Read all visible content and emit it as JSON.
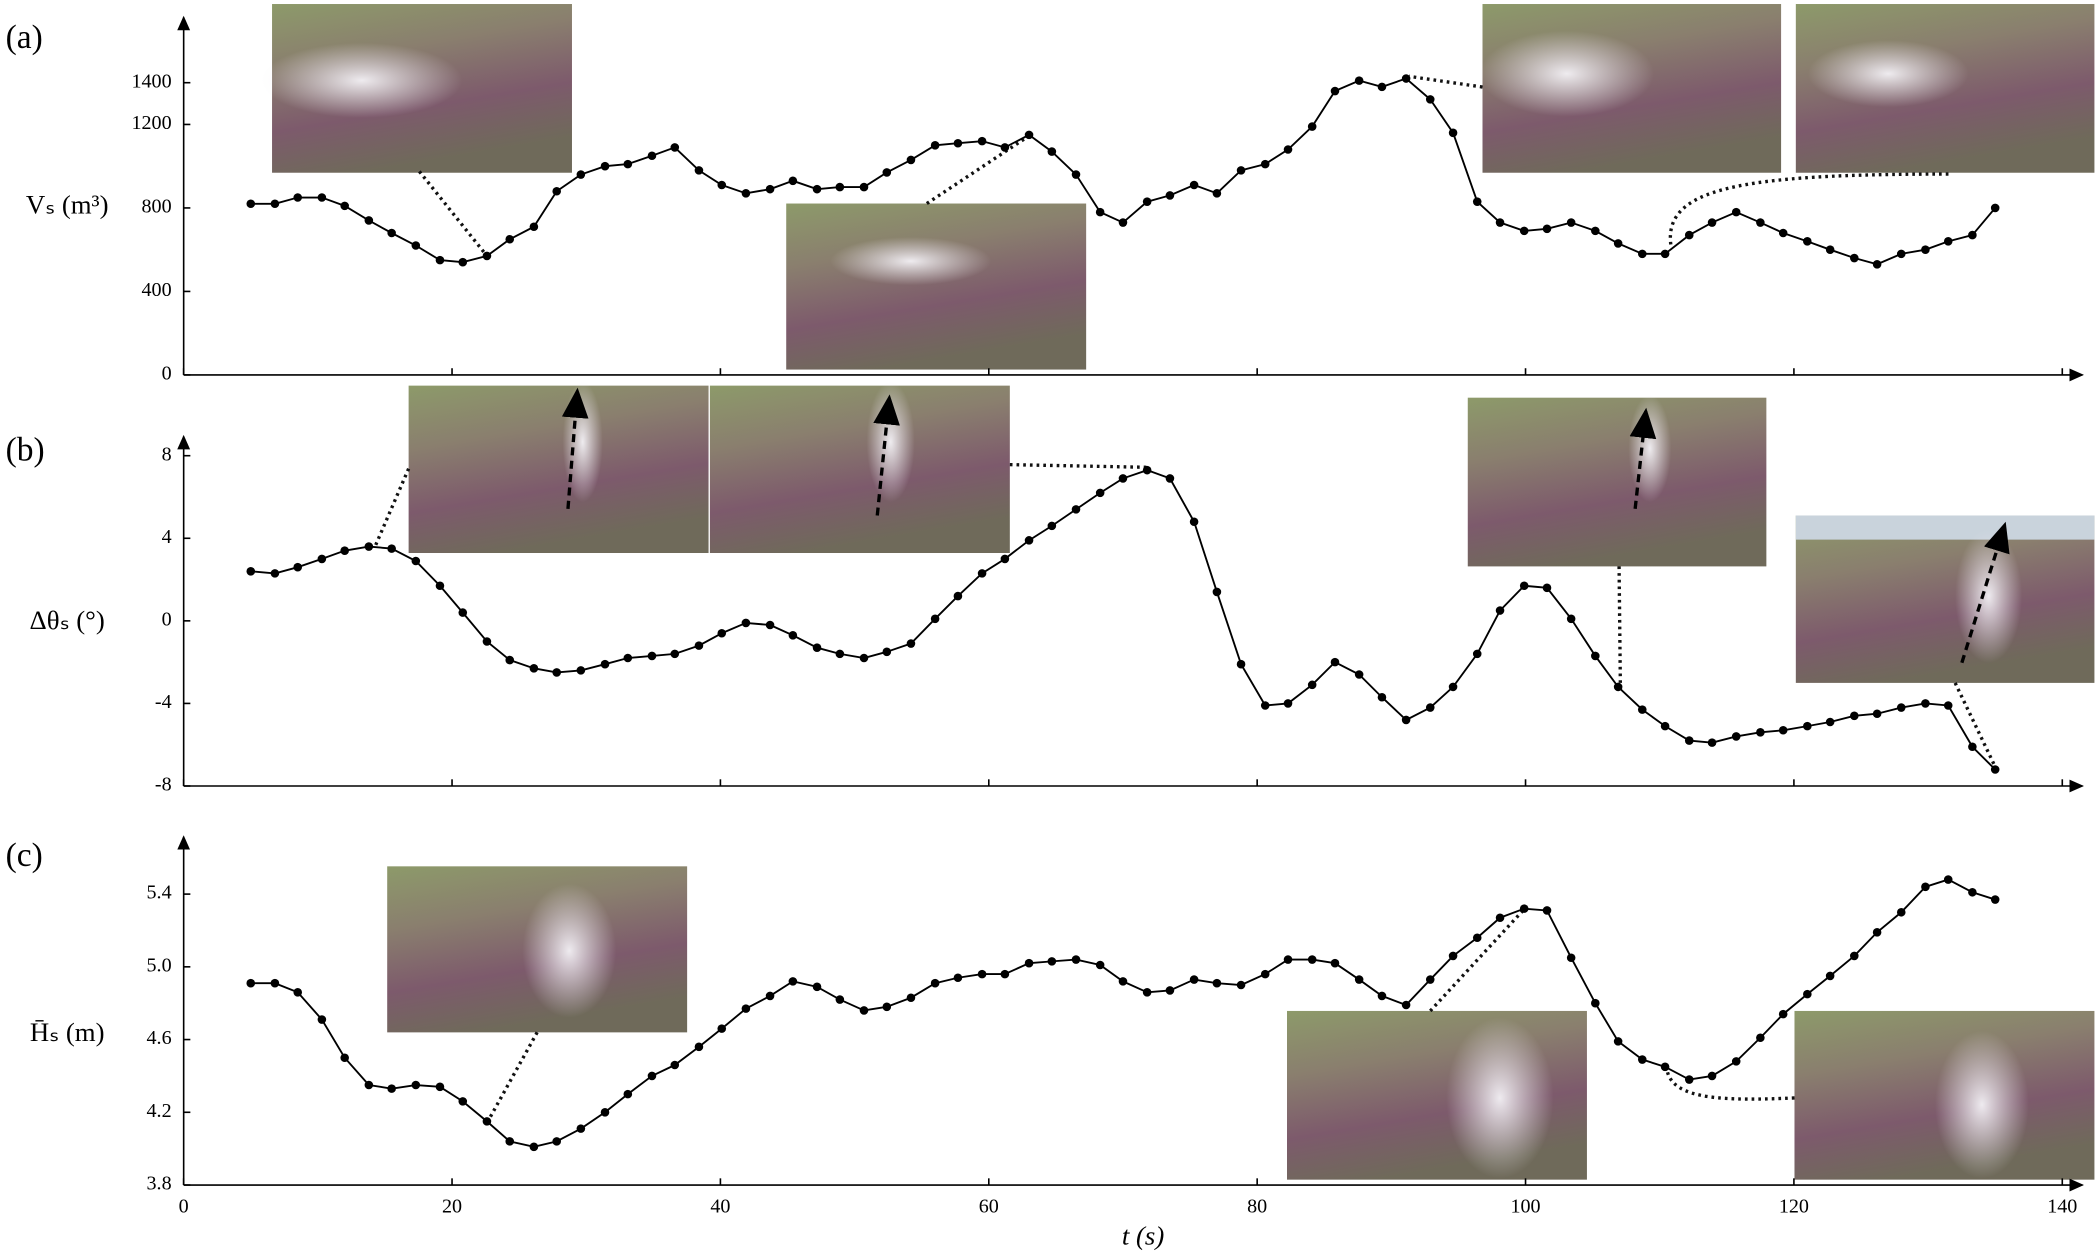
{
  "chart_data": [
    {
      "type": "line",
      "title": "(a)",
      "ylabel": "Vₛ (m³)",
      "x": [
        5.0,
        6.8,
        8.5,
        10.3,
        12.0,
        13.8,
        15.5,
        17.3,
        19.1,
        20.8,
        22.6,
        24.3,
        26.1,
        27.8,
        29.6,
        31.4,
        33.1,
        34.9,
        36.6,
        38.4,
        40.1,
        41.9,
        43.7,
        45.4,
        47.2,
        48.9,
        50.7,
        52.4,
        54.2,
        56.0,
        57.7,
        59.5,
        61.2,
        63.0,
        64.7,
        66.5,
        68.3,
        70.0,
        71.8,
        73.5,
        75.3,
        77.0,
        78.8,
        80.6,
        82.3,
        84.1,
        85.8,
        87.6,
        89.3,
        91.1,
        92.9,
        94.6,
        96.4,
        98.1,
        99.9,
        101.6,
        103.4,
        105.2,
        106.9,
        108.7,
        110.4,
        112.2,
        113.9,
        115.7,
        117.5,
        119.2,
        121.0,
        122.7,
        124.5,
        126.2,
        128.0,
        129.8,
        131.5,
        133.3,
        135.0
      ],
      "series": [
        {
          "color": "#000000",
          "values": [
            820,
            820,
            850,
            850,
            810,
            740,
            680,
            620,
            550,
            540,
            570,
            650,
            710,
            880,
            960,
            1000,
            1010,
            1050,
            1090,
            980,
            910,
            870,
            890,
            930,
            890,
            900,
            900,
            970,
            1030,
            1100,
            1110,
            1120,
            1090,
            1150,
            1070,
            960,
            780,
            730,
            830,
            860,
            910,
            870,
            980,
            1010,
            1080,
            1190,
            1360,
            1410,
            1380,
            1420,
            1320,
            1160,
            830,
            730,
            690,
            700,
            730,
            690,
            630,
            580,
            580,
            670,
            730,
            780,
            730,
            680,
            640,
            600,
            560,
            530,
            580,
            600,
            640,
            670,
            800
          ]
        }
      ],
      "xlim": [
        0,
        140
      ],
      "xticks": [
        0,
        20,
        40,
        60,
        80,
        100,
        120,
        140
      ],
      "ylim": [
        0,
        1700
      ],
      "yticks": [
        0,
        400,
        800,
        1200,
        1400
      ]
    },
    {
      "type": "line",
      "title": "(b)",
      "ylabel": "Δθₛ (°)",
      "x": [
        5.0,
        6.8,
        8.5,
        10.3,
        12.0,
        13.8,
        15.5,
        17.3,
        19.1,
        20.8,
        22.6,
        24.3,
        26.1,
        27.8,
        29.6,
        31.4,
        33.1,
        34.9,
        36.6,
        38.4,
        40.1,
        41.9,
        43.7,
        45.4,
        47.2,
        48.9,
        50.7,
        52.4,
        54.2,
        56.0,
        57.7,
        59.5,
        61.2,
        63.0,
        64.7,
        66.5,
        68.3,
        70.0,
        71.8,
        73.5,
        75.3,
        77.0,
        78.8,
        80.6,
        82.3,
        84.1,
        85.8,
        87.6,
        89.3,
        91.1,
        92.9,
        94.6,
        96.4,
        98.1,
        99.9,
        101.6,
        103.4,
        105.2,
        106.9,
        108.7,
        110.4,
        112.2,
        113.9,
        115.7,
        117.5,
        119.2,
        121.0,
        122.7,
        124.5,
        126.2,
        128.0,
        129.8,
        131.5,
        133.3,
        135.0
      ],
      "series": [
        {
          "color": "#000000",
          "values": [
            2.4,
            2.3,
            2.6,
            3.0,
            3.4,
            3.6,
            3.5,
            2.9,
            1.7,
            0.4,
            -1.0,
            -1.9,
            -2.3,
            -2.5,
            -2.4,
            -2.1,
            -1.8,
            -1.7,
            -1.6,
            -1.2,
            -0.6,
            -0.1,
            -0.2,
            -0.7,
            -1.3,
            -1.6,
            -1.8,
            -1.5,
            -1.1,
            0.1,
            1.2,
            2.3,
            3.0,
            3.9,
            4.6,
            5.4,
            6.2,
            6.9,
            7.3,
            6.9,
            4.8,
            1.4,
            -2.1,
            -4.1,
            -4.0,
            -3.1,
            -2.0,
            -2.6,
            -3.7,
            -4.8,
            -4.2,
            -3.2,
            -1.6,
            0.5,
            1.7,
            1.6,
            0.1,
            -1.7,
            -3.2,
            -4.3,
            -5.1,
            -5.8,
            -5.9,
            -5.6,
            -5.4,
            -5.3,
            -5.1,
            -4.9,
            -4.6,
            -4.5,
            -4.2,
            -4.0,
            -4.1,
            -6.1,
            -7.2
          ]
        }
      ],
      "xlim": [
        0,
        140
      ],
      "xticks": [
        0,
        20,
        40,
        60,
        80,
        100,
        120,
        140
      ],
      "ylim": [
        -8,
        8.8
      ],
      "yticks": [
        -8,
        -4,
        0,
        4,
        8
      ]
    },
    {
      "type": "line",
      "title": "(c)",
      "ylabel": "H̄ₛ (m)",
      "xlabel": "t (s)",
      "x": [
        5.0,
        6.8,
        8.5,
        10.3,
        12.0,
        13.8,
        15.5,
        17.3,
        19.1,
        20.8,
        22.6,
        24.3,
        26.1,
        27.8,
        29.6,
        31.4,
        33.1,
        34.9,
        36.6,
        38.4,
        40.1,
        41.9,
        43.7,
        45.4,
        47.2,
        48.9,
        50.7,
        52.4,
        54.2,
        56.0,
        57.7,
        59.5,
        61.2,
        63.0,
        64.7,
        66.5,
        68.3,
        70.0,
        71.8,
        73.5,
        75.3,
        77.0,
        78.8,
        80.6,
        82.3,
        84.1,
        85.8,
        87.6,
        89.3,
        91.1,
        92.9,
        94.6,
        96.4,
        98.1,
        99.9,
        101.6,
        103.4,
        105.2,
        106.9,
        108.7,
        110.4,
        112.2,
        113.9,
        115.7,
        117.5,
        119.2,
        121.0,
        122.7,
        124.5,
        126.2,
        128.0,
        129.8,
        131.5,
        133.3,
        135.0
      ],
      "series": [
        {
          "color": "#000000",
          "values": [
            4.91,
            4.91,
            4.86,
            4.71,
            4.5,
            4.35,
            4.33,
            4.35,
            4.34,
            4.26,
            4.15,
            4.04,
            4.01,
            4.04,
            4.11,
            4.2,
            4.3,
            4.4,
            4.46,
            4.56,
            4.66,
            4.77,
            4.84,
            4.92,
            4.89,
            4.82,
            4.76,
            4.78,
            4.83,
            4.91,
            4.94,
            4.96,
            4.96,
            5.02,
            5.03,
            5.04,
            5.01,
            4.92,
            4.86,
            4.87,
            4.93,
            4.91,
            4.9,
            4.96,
            5.04,
            5.04,
            5.02,
            4.93,
            4.84,
            4.79,
            4.93,
            5.06,
            5.16,
            5.27,
            5.32,
            5.31,
            5.05,
            4.8,
            4.59,
            4.49,
            4.45,
            4.38,
            4.4,
            4.48,
            4.61,
            4.74,
            4.85,
            4.95,
            5.06,
            5.19,
            5.3,
            5.44,
            5.48,
            5.41,
            5.37
          ]
        }
      ],
      "xlim": [
        0,
        140
      ],
      "xticks": [
        0,
        20,
        40,
        60,
        80,
        100,
        120,
        140
      ],
      "ylim": [
        3.8,
        5.7
      ],
      "yticks": [
        3.8,
        4.2,
        4.6,
        {
          "value": 5,
          "label": "5.0"
        },
        5.4
      ]
    }
  ]
}
